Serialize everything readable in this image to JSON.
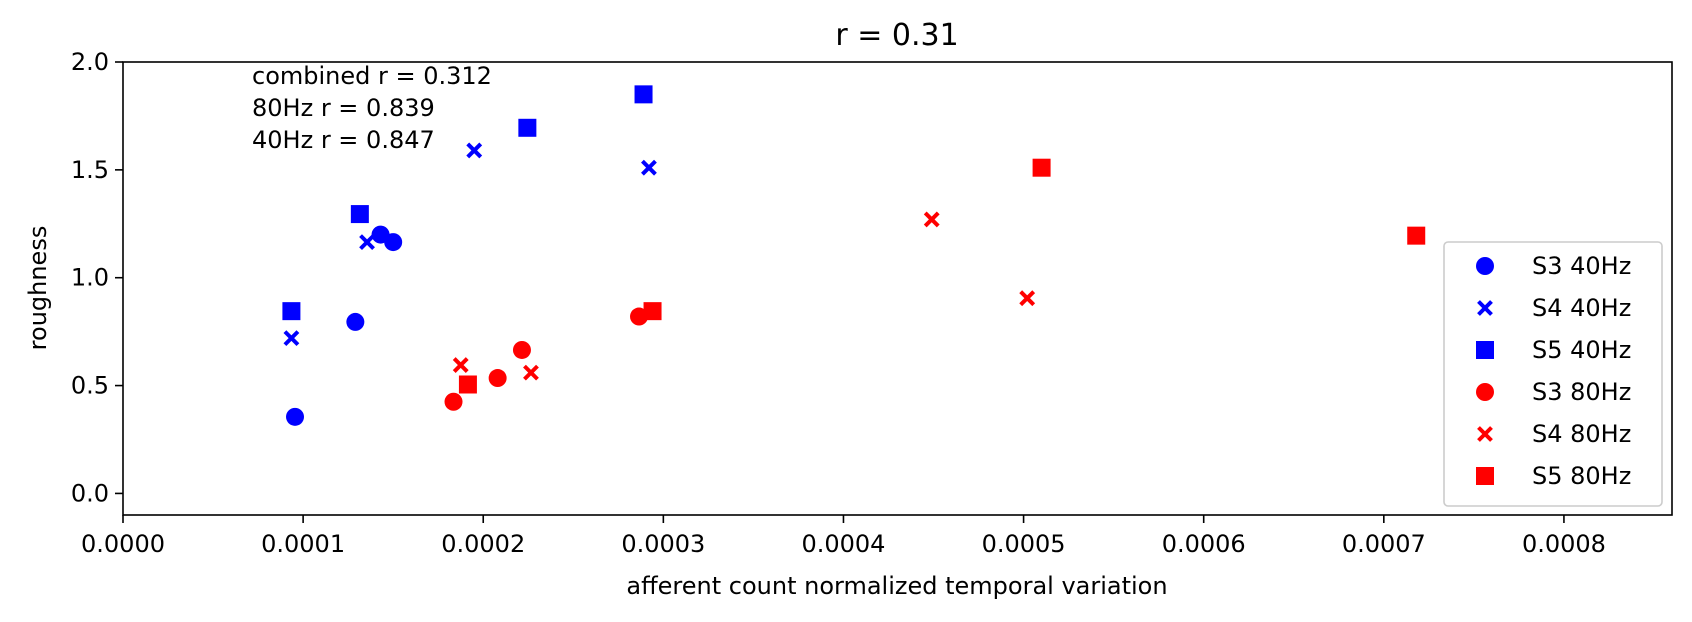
{
  "chart_data": {
    "type": "scatter",
    "title": "r = 0.31",
    "xlabel": "afferent count normalized temporal variation",
    "ylabel": "roughness",
    "xlim": [
      0,
      0.00086
    ],
    "ylim": [
      -0.1,
      2.0
    ],
    "xticks": [
      "0.0000",
      "0.0001",
      "0.0002",
      "0.0003",
      "0.0004",
      "0.0005",
      "0.0006",
      "0.0007",
      "0.0008"
    ],
    "xtick_values": [
      0,
      0.0001,
      0.0002,
      0.0003,
      0.0004,
      0.0005,
      0.0006,
      0.0007,
      0.0008
    ],
    "yticks": [
      "0.0",
      "0.5",
      "1.0",
      "1.5",
      "2.0"
    ],
    "ytick_values": [
      0,
      0.5,
      1.0,
      1.5,
      2.0
    ],
    "grid": false,
    "legend_position": "lower-right",
    "annotations": [
      "combined r = 0.312",
      "80Hz r = 0.839",
      "40Hz r = 0.847"
    ],
    "series": [
      {
        "name": "S3 40Hz",
        "marker": "circle",
        "color": "#0000ff",
        "points": [
          [
            9.55e-05,
            0.355
          ],
          [
            0.000129,
            0.795
          ],
          [
            0.000143,
            1.2
          ],
          [
            0.00015,
            1.165
          ]
        ]
      },
      {
        "name": "S4 40Hz",
        "marker": "x",
        "color": "#0000ff",
        "points": [
          [
            9.35e-05,
            0.72
          ],
          [
            0.0001355,
            1.165
          ],
          [
            0.000195,
            1.59
          ],
          [
            0.000292,
            1.51
          ]
        ]
      },
      {
        "name": "S5 40Hz",
        "marker": "square",
        "color": "#0000ff",
        "points": [
          [
            9.35e-05,
            0.845
          ],
          [
            0.0001315,
            1.295
          ],
          [
            0.0002245,
            1.695
          ],
          [
            0.000289,
            1.85
          ]
        ]
      },
      {
        "name": "S3 80Hz",
        "marker": "circle",
        "color": "#ff0000",
        "points": [
          [
            0.0001835,
            0.425
          ],
          [
            0.000208,
            0.535
          ],
          [
            0.0002215,
            0.665
          ],
          [
            0.0002865,
            0.82
          ]
        ]
      },
      {
        "name": "S4 80Hz",
        "marker": "x",
        "color": "#ff0000",
        "points": [
          [
            0.0001875,
            0.595
          ],
          [
            0.0002265,
            0.56
          ],
          [
            0.000449,
            1.27
          ],
          [
            0.000502,
            0.905
          ]
        ]
      },
      {
        "name": "S5 80Hz",
        "marker": "square",
        "color": "#ff0000",
        "points": [
          [
            0.0001915,
            0.505
          ],
          [
            0.000294,
            0.845
          ],
          [
            0.00051,
            1.51
          ],
          [
            0.000718,
            1.195
          ]
        ]
      }
    ]
  }
}
